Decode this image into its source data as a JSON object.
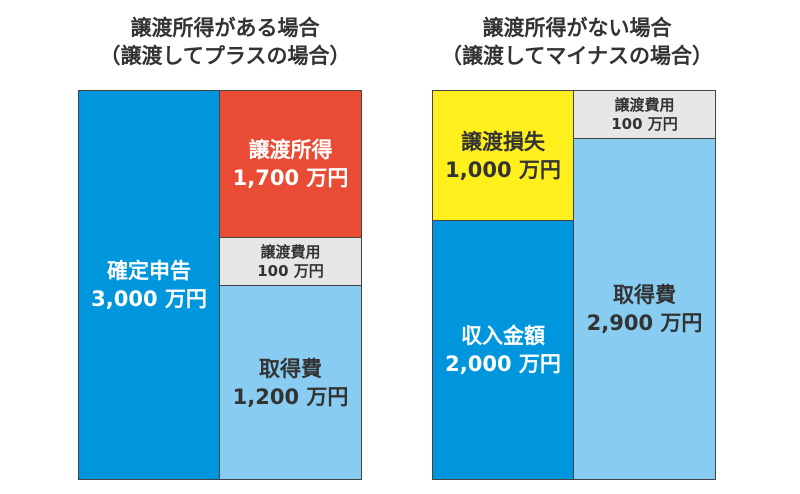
{
  "colors": {
    "dark_blue": "#0096DE",
    "light_blue": "#88CCF1",
    "red": "#E94B35",
    "gray": "#E6E6E6",
    "yellow": "#FFEF1D",
    "border": "#444444",
    "text_dark": "#333333"
  },
  "left": {
    "title_line1": "譲渡所得がある場合",
    "title_line2": "（譲渡してプラスの場合）",
    "kakutei": {
      "label": "確定申告",
      "value": "3,000 万円"
    },
    "joto_shotoku": {
      "label": "譲渡所得",
      "value": "1,700 万円"
    },
    "joto_hiyo": {
      "label": "譲渡費用",
      "value": "100 万円"
    },
    "shutoku_hi": {
      "label": "取得費",
      "value": "1,200 万円"
    }
  },
  "right": {
    "title_line1": "譲渡所得がない場合",
    "title_line2": "（譲渡してマイナスの場合）",
    "joto_sonshitsu": {
      "label": "譲渡損失",
      "value": "1,000 万円"
    },
    "shunyu_kingaku": {
      "label": "収入金額",
      "value": "2,000 万円"
    },
    "joto_hiyo": {
      "label": "譲渡費用",
      "value": "100 万円"
    },
    "shutoku_hi": {
      "label": "取得費",
      "value": "2,900 万円"
    }
  }
}
